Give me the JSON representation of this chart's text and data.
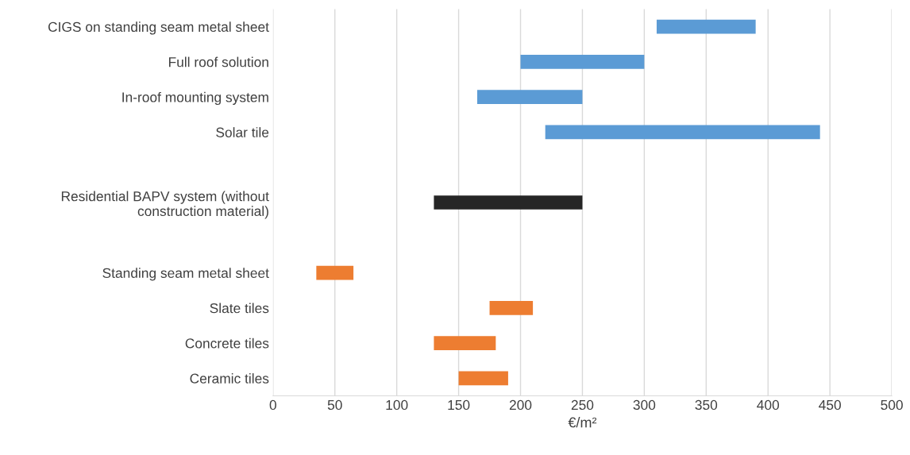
{
  "chart_data": {
    "type": "bar",
    "orientation": "horizontal",
    "xlabel": "€/m²",
    "categories": [
      "CIGS on standing seam metal sheet",
      "Full roof solution",
      "In-roof mounting system",
      "Solar tile",
      null,
      "Residential BAPV system (without\nconstruction material)",
      null,
      "Standing seam metal sheet",
      "Slate tiles",
      "Concrete tiles",
      "Ceramic tiles"
    ],
    "base": [
      310,
      200,
      165,
      220,
      null,
      130,
      null,
      35,
      175,
      130,
      150
    ],
    "values": [
      80,
      100,
      85,
      222,
      null,
      120,
      null,
      30,
      35,
      50,
      40
    ],
    "colors": [
      "#5b9bd5",
      "#5b9bd5",
      "#5b9bd5",
      "#5b9bd5",
      null,
      "#262626",
      null,
      "#ed7d31",
      "#ed7d31",
      "#ed7d31",
      "#ed7d31"
    ],
    "xlim": [
      0,
      500
    ],
    "xticks": [
      0,
      50,
      100,
      150,
      200,
      250,
      300,
      350,
      400,
      450,
      500
    ],
    "grid": "x"
  }
}
